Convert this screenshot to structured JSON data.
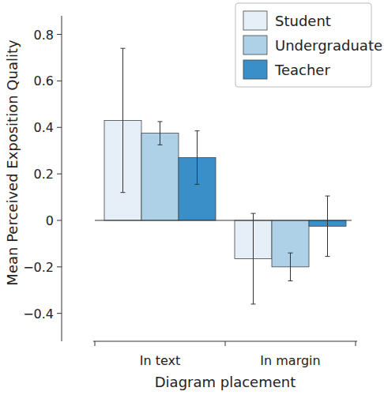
{
  "chart_data": {
    "type": "bar",
    "x_label": "Diagram placement",
    "y_label": "Mean Perceived Exposition Quality",
    "categories": [
      "In text",
      "In margin"
    ],
    "series": [
      {
        "name": "Student",
        "color": "#e6eff8",
        "values": [
          0.43,
          -0.165
        ],
        "errors": [
          0.31,
          0.195
        ]
      },
      {
        "name": "Undergraduate",
        "color": "#aed1e7",
        "values": [
          0.375,
          -0.2
        ],
        "errors": [
          0.05,
          0.06
        ]
      },
      {
        "name": "Teacher",
        "color": "#3b8fc9",
        "values": [
          0.27,
          -0.025
        ],
        "errors": [
          0.115,
          0.13
        ]
      }
    ],
    "ylim": [
      -0.52,
      0.88
    ],
    "yticks": [
      {
        "value": -0.4,
        "label": "−0.4"
      },
      {
        "value": -0.2,
        "label": "−0.2"
      },
      0,
      0.2,
      0.4,
      0.6,
      0.8
    ],
    "legend": "upper right",
    "grid": false
  }
}
